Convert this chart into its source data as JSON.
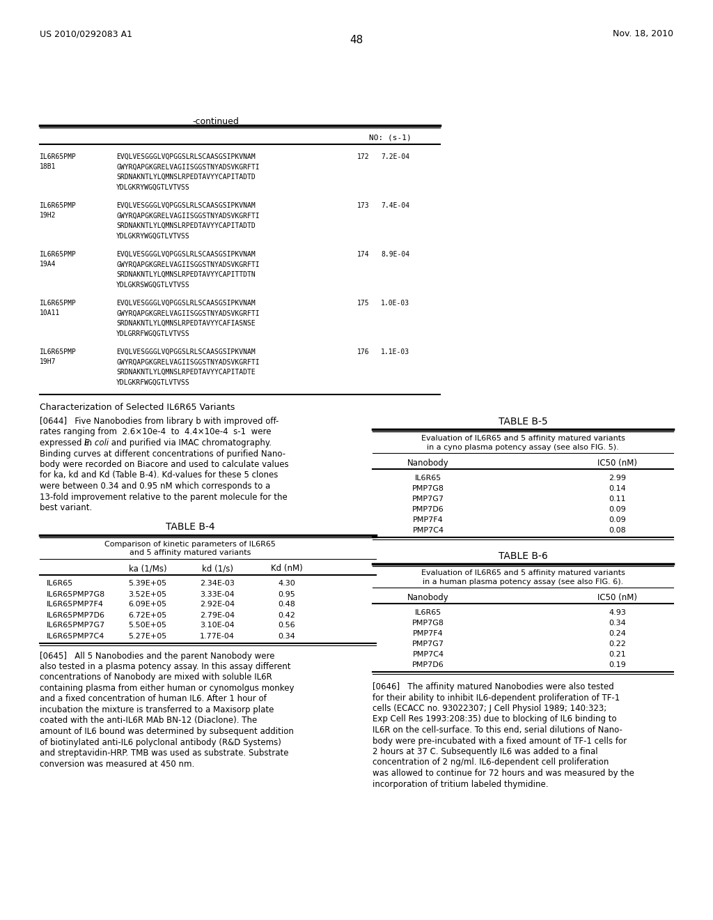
{
  "page_number": "48",
  "patent_number": "US 2010/0292083 A1",
  "patent_date": "Nov. 18, 2010",
  "continued_label": "-continued",
  "sequence_header": "NO: (s-1)",
  "sequences": [
    {
      "id": "IL6R65PMP\n18B1",
      "seq": "EVQLVESGGGLVQPGGSLRLSCAASGSIPKVNAM\nGWYRQAPGKGRELVAGIISGGSTNYADSVKGRFTI\nSRDNAKNTLYLQMNSLRPEDTAVYYCAPITADTD\nYDLGKRYWGQGTLVTVSS",
      "no": "172",
      "val": "7.2E-04"
    },
    {
      "id": "IL6R65PMP\n19H2",
      "seq": "EVQLVESGGGLVQPGGSLRLSCAASGSIPKVNAM\nGWYRQAPGKGRELVAGIISGGSTNYADSVKGRFTI\nSRDNAKNTLYLQMNSLRPEDTAVYYCAPITADTD\nYDLGKRYWGQGTLVTVSS",
      "no": "173",
      "val": "7.4E-04"
    },
    {
      "id": "IL6R65PMP\n19A4",
      "seq": "EVQLVESGGGLVQPGGSLRLSCAASGSIPKVNAM\nGWYRQAPGKGRELVAGIISGGSTNYADSVKGRFTI\nSRDNAKNTLYLQMNSLRPEDTAVYYCAPITTDTN\nYDLGKRSWGQGTLVTVSS",
      "no": "174",
      "val": "8.9E-04"
    },
    {
      "id": "IL6R65PMP\n10A11",
      "seq": "EVQLVESGGGLVQPGGSLRLSCAASGSIPKVNAM\nGWYRQAPGKGRELVAGIISGGSTNYADSVKGRFTI\nSRDNAKNTLYLQMNSLRPEDTAVYYCAFIASNSE\nYDLGRRFWGQGTLVTVSS",
      "no": "175",
      "val": "1.0E-03"
    },
    {
      "id": "IL6R65PMP\n19H7",
      "seq": "EVQLVESGGGLVQPGGSLRLSCAASGSIPKVNAM\nGWYRQAPGKGRELVAGIISGGSTNYADSVKGRFTI\nSRDNAKNTLYLQMNSLRPEDTAVYYCAPITADTE\nYDLGKRFWGQGTLVTVSS",
      "no": "176",
      "val": "1.1E-03"
    }
  ],
  "section_title": "Characterization of Selected IL6R65 Variants",
  "para_0644_lines": [
    "[0644]   Five Nanobodies from library b with improved off-",
    "rates ranging from  2.6×10e-4  to  4.4×10e-4  s-1  were",
    "expressed in E. coli and purified via IMAC chromatography.",
    "Binding curves at different concentrations of purified Nano-",
    "body were recorded on Biacore and used to calculate values",
    "for ka, kd and Kd (Table B-4). Kd-values for these 5 clones",
    "were between 0.34 and 0.95 nM which corresponds to a",
    "13-fold improvement relative to the parent molecule for the",
    "best variant."
  ],
  "table_b4_title": "TABLE B-4",
  "table_b4_subtitle1": "Comparison of kinetic parameters of IL6R65",
  "table_b4_subtitle2": "and 5 affinity matured variants",
  "table_b4_headers": [
    "",
    "ka (1/Ms)",
    "kd (1/s)",
    "Kd (nM)"
  ],
  "table_b4_rows": [
    [
      "IL6R65",
      "5.39E+05",
      "2.34E-03",
      "4.30"
    ],
    [
      "IL6R65PMP7G8",
      "3.52E+05",
      "3.33E-04",
      "0.95"
    ],
    [
      "IL6R65PMP7F4",
      "6.09E+05",
      "2.92E-04",
      "0.48"
    ],
    [
      "IL6R65PMP7D6",
      "6.72E+05",
      "2.79E-04",
      "0.42"
    ],
    [
      "IL6R65PMP7G7",
      "5.50E+05",
      "3.10E-04",
      "0.56"
    ],
    [
      "IL6R65PMP7C4",
      "5.27E+05",
      "1.77E-04",
      "0.34"
    ]
  ],
  "table_b5_title": "TABLE B-5",
  "table_b5_subtitle1": "Evaluation of IL6R65 and 5 affinity matured variants",
  "table_b5_subtitle2": "in a cyno plasma potency assay (see also FIG. 5).",
  "table_b5_headers": [
    "Nanobody",
    "IC50 (nM)"
  ],
  "table_b5_rows": [
    [
      "IL6R65",
      "2.99"
    ],
    [
      "PMP7G8",
      "0.14"
    ],
    [
      "PMP7G7",
      "0.11"
    ],
    [
      "PMP7D6",
      "0.09"
    ],
    [
      "PMP7F4",
      "0.09"
    ],
    [
      "PMP7C4",
      "0.08"
    ]
  ],
  "table_b6_title": "TABLE B-6",
  "table_b6_subtitle1": "Evaluation of IL6R65 and 5 affinity matured variants",
  "table_b6_subtitle2": "in a human plasma potency assay (see also FIG. 6).",
  "table_b6_headers": [
    "Nanobody",
    "IC50 (nM)"
  ],
  "table_b6_rows": [
    [
      "IL6R65",
      "4.93"
    ],
    [
      "PMP7G8",
      "0.34"
    ],
    [
      "PMP7F4",
      "0.24"
    ],
    [
      "PMP7G7",
      "0.22"
    ],
    [
      "PMP7C4",
      "0.21"
    ],
    [
      "PMP7D6",
      "0.19"
    ]
  ],
  "para_0645_lines": [
    "[0645]   All 5 Nanobodies and the parent Nanobody were",
    "also tested in a plasma potency assay. In this assay different",
    "concentrations of Nanobody are mixed with soluble IL6R",
    "containing plasma from either human or cynomolgus monkey",
    "and a fixed concentration of human IL6. After 1 hour of",
    "incubation the mixture is transferred to a Maxisorp plate",
    "coated with the anti-IL6R MAb BN-12 (Diaclone). The",
    "amount of IL6 bound was determined by subsequent addition",
    "of biotinylated anti-IL6 polyclonal antibody (R&D Systems)",
    "and streptavidin-HRP. TMB was used as substrate. Substrate",
    "conversion was measured at 450 nm."
  ],
  "para_0646_lines": [
    "[0646]   The affinity matured Nanobodies were also tested",
    "for their ability to inhibit IL6-dependent proliferation of TF-1",
    "cells (ECACC no. 93022307; J Cell Physiol 1989; 140:323;",
    "Exp Cell Res 1993:208:35) due to blocking of IL6 binding to",
    "IL6R on the cell-surface. To this end, serial dilutions of Nano-",
    "body were pre-incubated with a fixed amount of TF-1 cells for",
    "2 hours at 37 C. Subsequently IL6 was added to a final",
    "concentration of 2 ng/ml. IL6-dependent cell proliferation",
    "was allowed to continue for 72 hours and was measured by the",
    "incorporation of tritium labeled thymidine."
  ],
  "bg_color": "#ffffff"
}
